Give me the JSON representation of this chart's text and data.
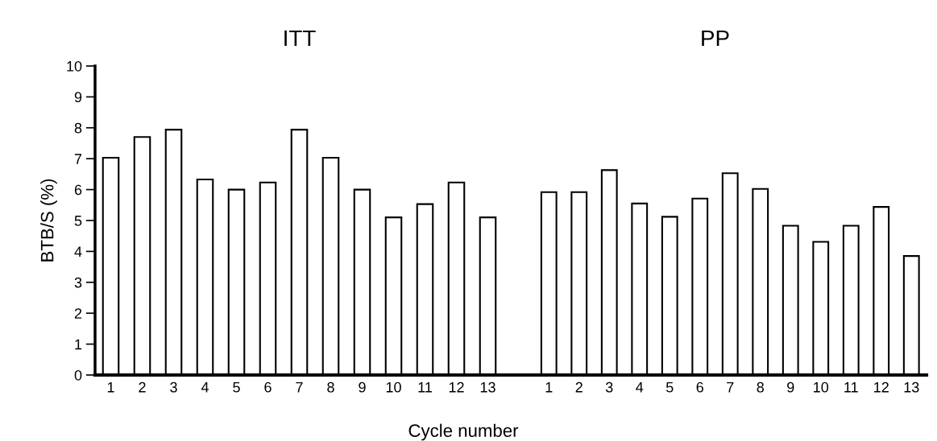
{
  "chart_data": [
    {
      "type": "bar",
      "title": "ITT",
      "ylabel": "BTB/S (%)",
      "xlabel": "Cycle number",
      "categories": [
        "1",
        "2",
        "3",
        "4",
        "5",
        "6",
        "7",
        "8",
        "9",
        "10",
        "11",
        "12",
        "13"
      ],
      "values": [
        7.03,
        7.7,
        7.94,
        6.33,
        6.0,
        6.23,
        7.94,
        7.03,
        6.0,
        5.1,
        5.53,
        6.23,
        5.1
      ],
      "color": "#ffffff",
      "ylim": [
        0,
        10
      ],
      "yticks": [
        0,
        1,
        2,
        3,
        4,
        5,
        6,
        7,
        8,
        9,
        10
      ],
      "grid": false,
      "legend": false
    },
    {
      "type": "bar",
      "title": "PP",
      "categories": [
        "1",
        "2",
        "3",
        "4",
        "5",
        "6",
        "7",
        "8",
        "9",
        "10",
        "11",
        "12",
        "13"
      ],
      "values": [
        5.92,
        5.92,
        6.63,
        5.55,
        5.12,
        5.71,
        6.53,
        6.02,
        4.83,
        4.31,
        4.83,
        5.44,
        3.85
      ],
      "color": "#ffffff",
      "ylim": [
        0,
        10
      ],
      "tick_labels": "x",
      "grid": false,
      "legend": false
    }
  ]
}
